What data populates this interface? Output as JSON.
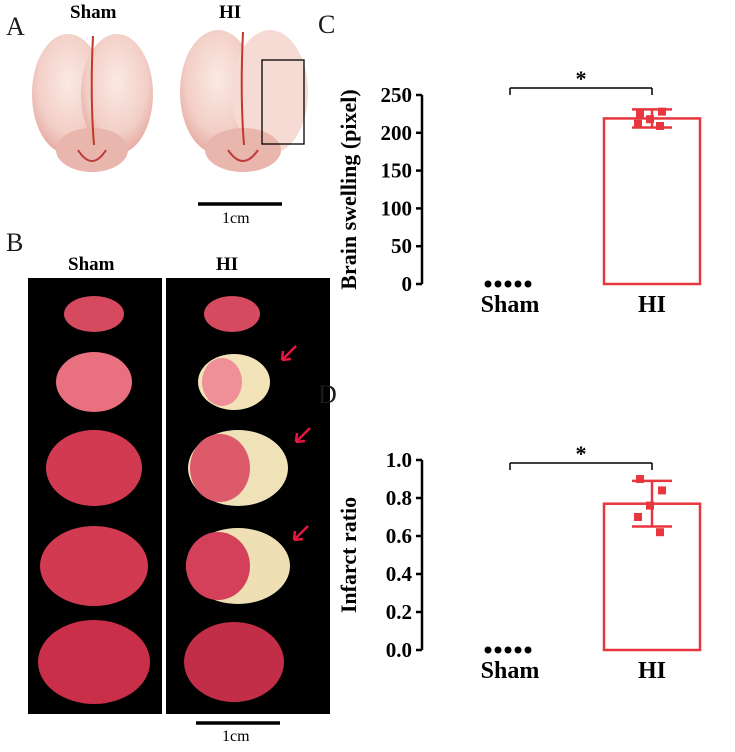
{
  "panels": {
    "A": {
      "letter": "A",
      "groups": [
        "Sham",
        "HI"
      ],
      "scale_bar_label": "1cm"
    },
    "B": {
      "letter": "B",
      "groups": [
        "Sham",
        "HI"
      ],
      "scale_bar_label": "1cm",
      "arrow_color": "#e5173f"
    },
    "C": {
      "letter": "C"
    },
    "D": {
      "letter": "D"
    }
  },
  "chart_data": [
    {
      "type": "bar",
      "panel": "C",
      "categories": [
        "Sham",
        "HI"
      ],
      "ylabel": "Brain swelling (pixel)",
      "ylim": [
        0,
        250
      ],
      "yticks": [
        0,
        50,
        100,
        150,
        200,
        250
      ],
      "values": [
        0,
        219
      ],
      "error_sd": [
        0,
        12
      ],
      "points": {
        "Sham": [
          0,
          0,
          0,
          0,
          0
        ],
        "HI": [
          225,
          228,
          218,
          212,
          209
        ]
      },
      "significance": "*",
      "colors": {
        "Sham": "#000000",
        "HI": "#e8363f"
      }
    },
    {
      "type": "bar",
      "panel": "D",
      "categories": [
        "Sham",
        "HI"
      ],
      "ylabel": "Infarct ratio",
      "ylim": [
        0,
        1.0
      ],
      "yticks": [
        "0.0",
        "0.2",
        "0.4",
        "0.6",
        "0.8",
        "1.0"
      ],
      "values": [
        0,
        0.77
      ],
      "error_sd": [
        0,
        0.12
      ],
      "points": {
        "Sham": [
          0,
          0,
          0,
          0,
          0
        ],
        "HI": [
          0.9,
          0.84,
          0.76,
          0.7,
          0.62
        ]
      },
      "significance": "*",
      "colors": {
        "Sham": "#000000",
        "HI": "#e8363f"
      }
    }
  ]
}
